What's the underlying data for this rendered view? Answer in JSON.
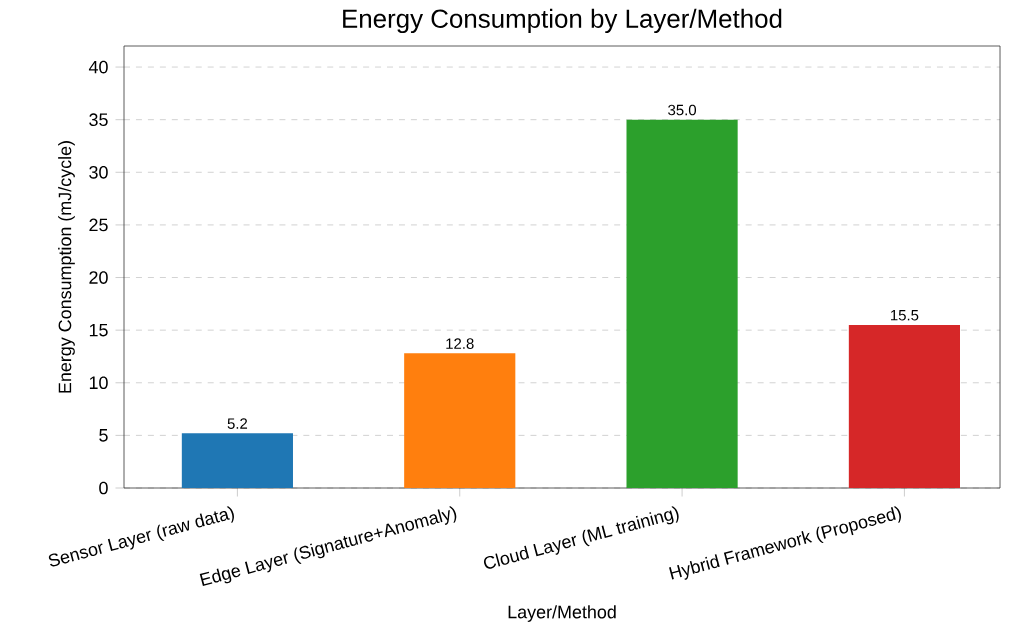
{
  "chart_data": {
    "type": "bar",
    "title": "Energy Consumption by Layer/Method",
    "xlabel": "Layer/Method",
    "ylabel": "Energy Consumption (mJ/cycle)",
    "categories": [
      "Sensor Layer (raw data)",
      "Edge Layer (Signature+Anomaly)",
      "Cloud Layer (ML training)",
      "Hybrid Framework (Proposed)"
    ],
    "values": [
      5.2,
      12.8,
      35.0,
      15.5
    ],
    "colors": [
      "#1f77b4",
      "#ff7f0e",
      "#2ca02c",
      "#d62728"
    ],
    "value_labels": [
      "5.2",
      "12.8",
      "35.0",
      "15.5"
    ],
    "ylim": [
      0,
      42
    ],
    "yticks": [
      0,
      5,
      10,
      15,
      20,
      25,
      30,
      35,
      40
    ],
    "grid": "y"
  }
}
